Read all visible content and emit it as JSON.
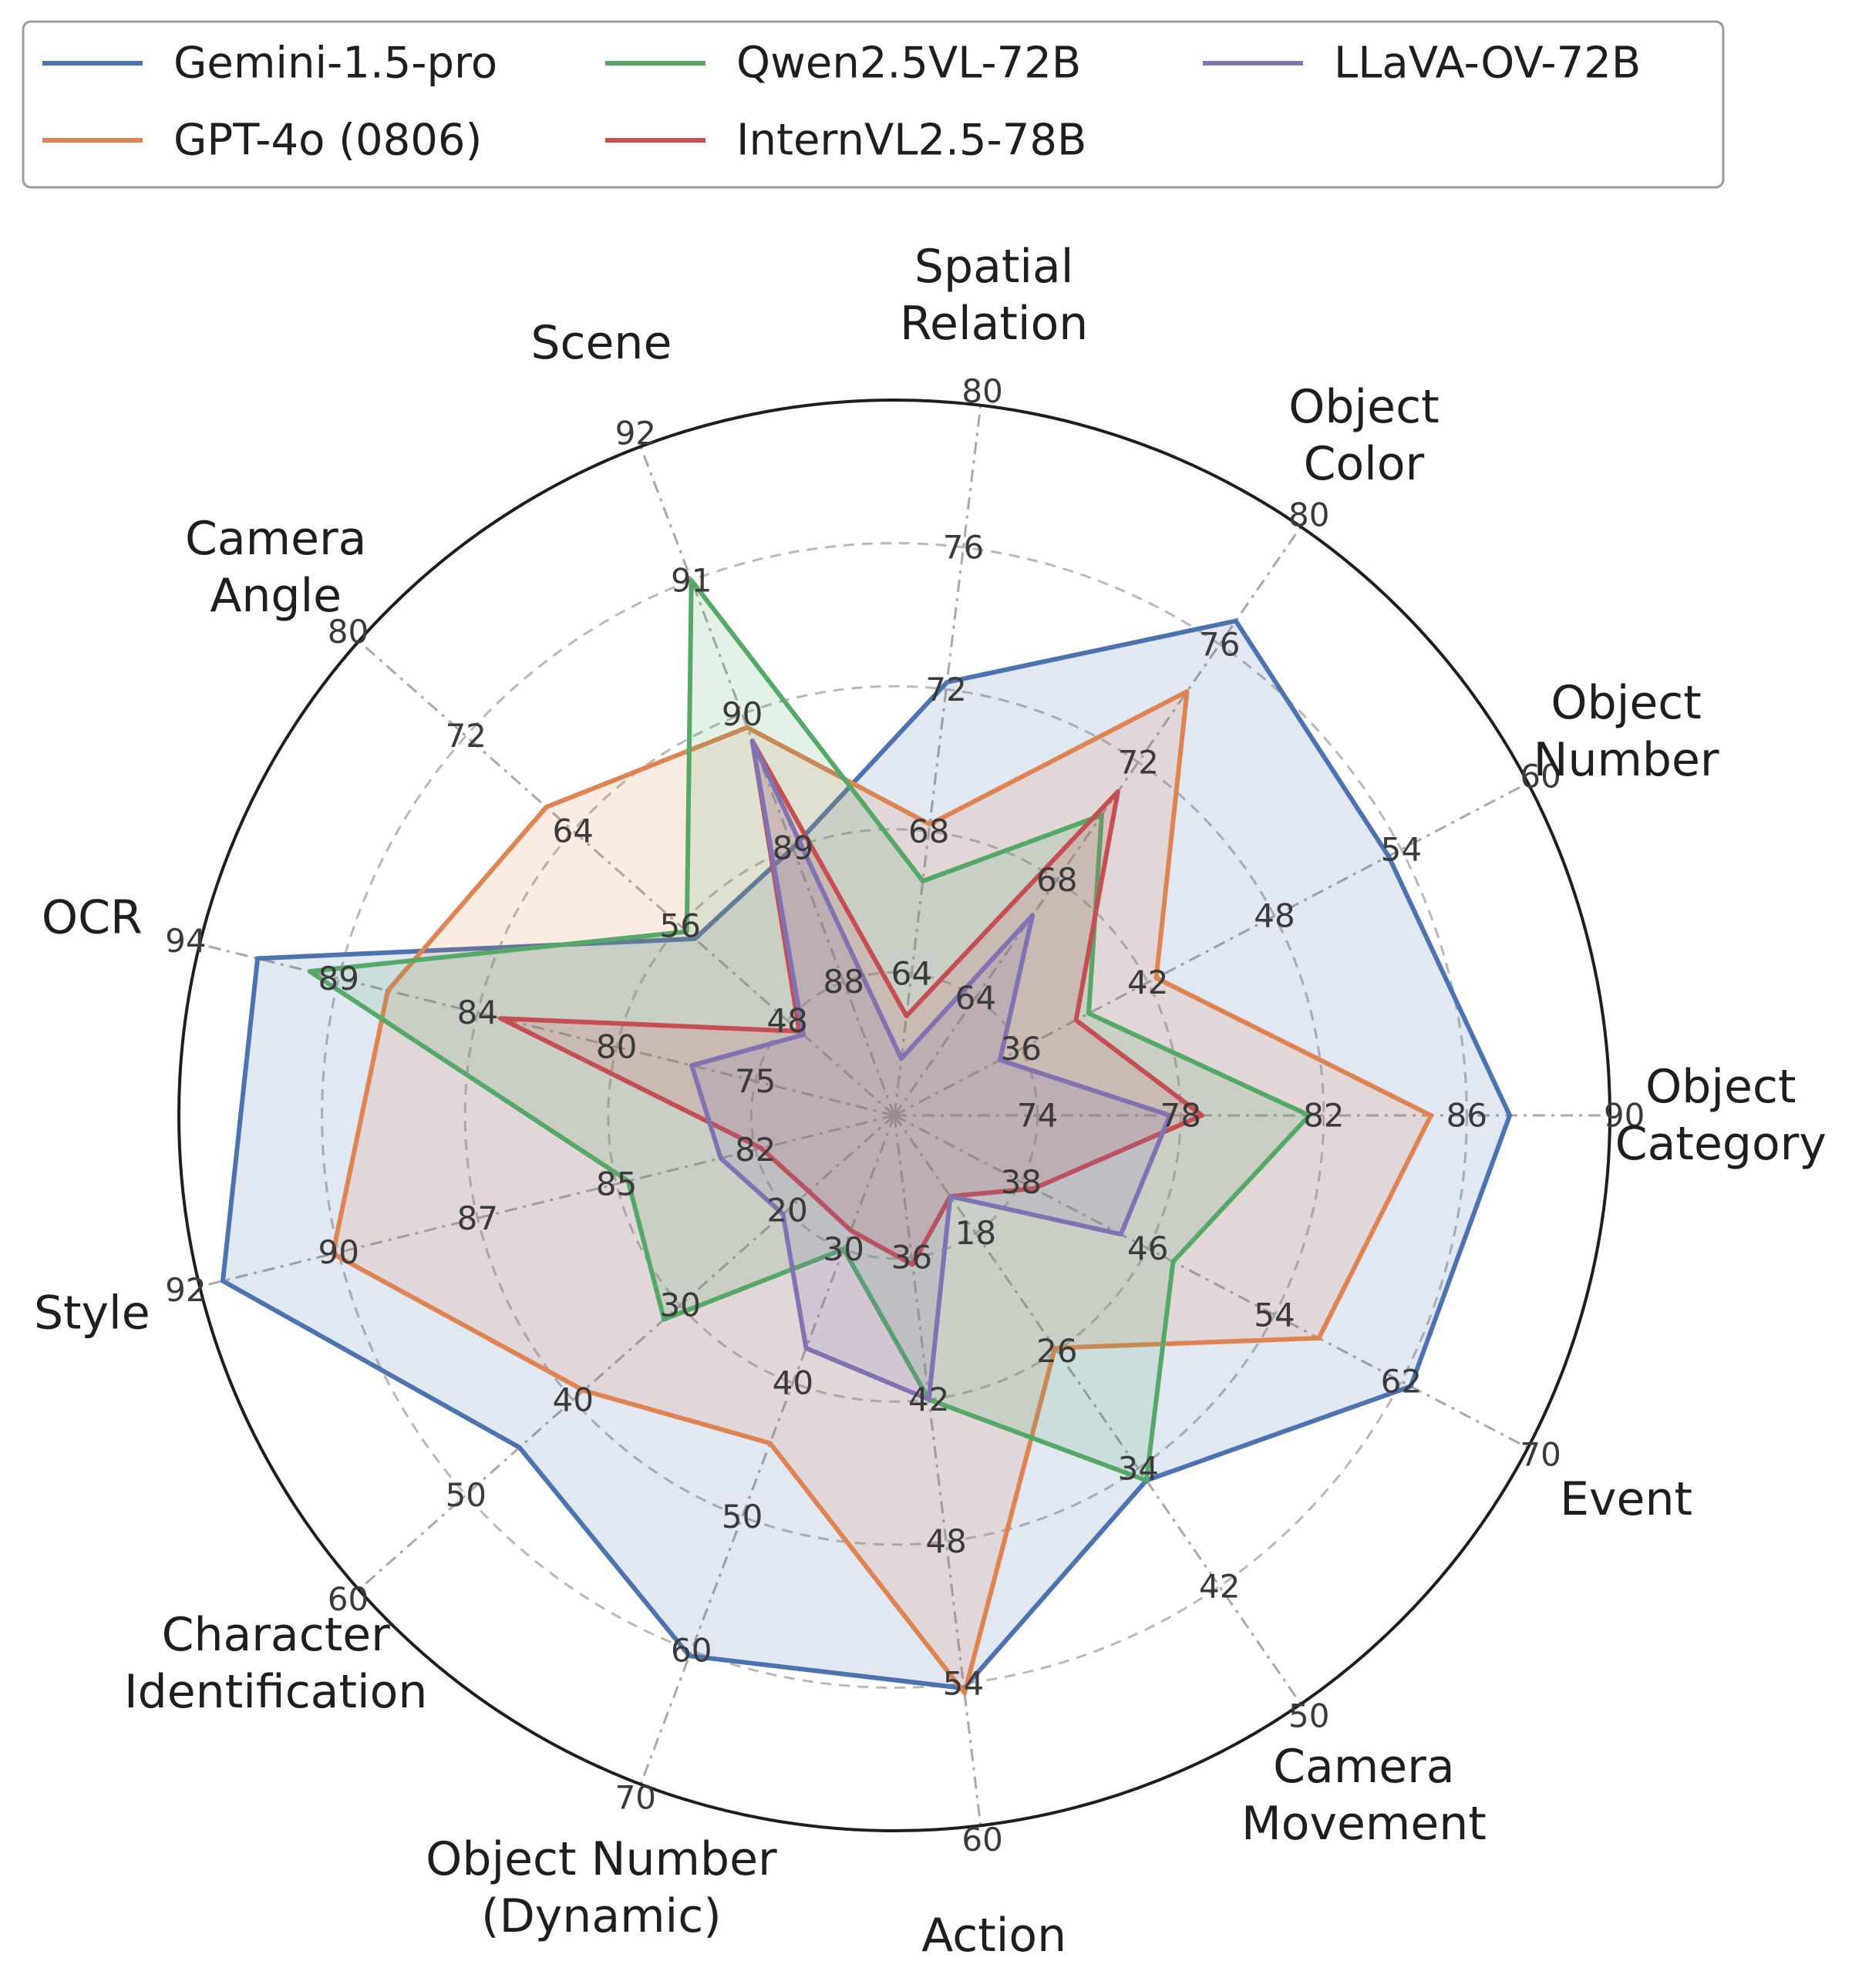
{
  "chart_data": {
    "type": "radar",
    "axes": [
      {
        "label": [
          "Object",
          "Category"
        ],
        "ticks": [
          "74",
          "78",
          "82",
          "86",
          "90"
        ],
        "min": 70,
        "max": 90
      },
      {
        "label": [
          "Object",
          "Number"
        ],
        "ticks": [
          "36",
          "42",
          "48",
          "54",
          "60"
        ],
        "min": 30,
        "max": 60
      },
      {
        "label": [
          "Object",
          "Color"
        ],
        "ticks": [
          "64",
          "68",
          "72",
          "76",
          "80"
        ],
        "min": 60,
        "max": 80
      },
      {
        "label": [
          "Spatial",
          "Relation"
        ],
        "ticks": [
          "64",
          "68",
          "72",
          "76",
          "80"
        ],
        "min": 60,
        "max": 80
      },
      {
        "label": [
          "Scene"
        ],
        "ticks": [
          "88",
          "89",
          "90",
          "91",
          "92"
        ],
        "min": 87,
        "max": 92
      },
      {
        "label": [
          "Camera",
          "Angle"
        ],
        "ticks": [
          "48",
          "56",
          "64",
          "72",
          "80"
        ],
        "min": 40,
        "max": 80
      },
      {
        "label": [
          "OCR"
        ],
        "ticks": [
          "75",
          "80",
          "84",
          "89",
          "94"
        ],
        "min": 70,
        "max": 94
      },
      {
        "label": [
          "Style"
        ],
        "ticks": [
          "82",
          "85",
          "87",
          "90",
          "92"
        ],
        "min": 80,
        "max": 92
      },
      {
        "label": [
          "Character",
          "Identification"
        ],
        "ticks": [
          "20",
          "30",
          "40",
          "50",
          "60"
        ],
        "min": 10,
        "max": 60
      },
      {
        "label": [
          "Object Number",
          "(Dynamic)"
        ],
        "ticks": [
          "30",
          "40",
          "50",
          "60",
          "70"
        ],
        "min": 20,
        "max": 70
      },
      {
        "label": [
          "Action"
        ],
        "ticks": [
          "36",
          "42",
          "48",
          "54",
          "60"
        ],
        "min": 30,
        "max": 60
      },
      {
        "label": [
          "Camera",
          "Movement"
        ],
        "ticks": [
          "18",
          "26",
          "34",
          "42",
          "50"
        ],
        "min": 10,
        "max": 50
      },
      {
        "label": [
          "Event"
        ],
        "ticks": [
          "38",
          "46",
          "54",
          "62",
          "70"
        ],
        "min": 30,
        "max": 70
      }
    ],
    "series": [
      {
        "name": "Gemini-1.5-pro",
        "color": "#4c72b0",
        "values": [
          87.2,
          53.4,
          76.8,
          72.2,
          89.0,
          54.9,
          92.0,
          91.6,
          45.0,
          60.4,
          54.2,
          34.8,
          62.6
        ]
      },
      {
        "name": "GPT-4o (0806)",
        "color": "#dd8452",
        "values": [
          85.0,
          42.4,
          74.4,
          68.2,
          89.9,
          66.0,
          87.5,
          89.7,
          39.0,
          44.5,
          54.4,
          25.8,
          56.8
        ]
      },
      {
        "name": "Qwen2.5VL-72B",
        "color": "#55a868",
        "values": [
          81.6,
          39.2,
          70.2,
          66.6,
          91.0,
          55.5,
          90.2,
          84.6,
          31.5,
          30.0,
          42.0,
          34.8,
          47.6
        ]
      },
      {
        "name": "InternVL2.5-78B",
        "color": "#c44e52",
        "values": [
          78.6,
          38.6,
          71.0,
          62.8,
          89.8,
          47.1,
          83.6,
          82.3,
          18.0,
          28.6,
          36.3,
          15.5,
          38.8
        ]
      },
      {
        "name": "LLaVA-OV-72B",
        "color": "#8172b2",
        "values": [
          77.7,
          35.0,
          66.8,
          61.6,
          89.8,
          46.8,
          77.0,
          83.0,
          20.4,
          37.4,
          42.0,
          15.5,
          44.3
        ]
      }
    ],
    "legend": {
      "placement": "top",
      "columns": 3
    }
  }
}
